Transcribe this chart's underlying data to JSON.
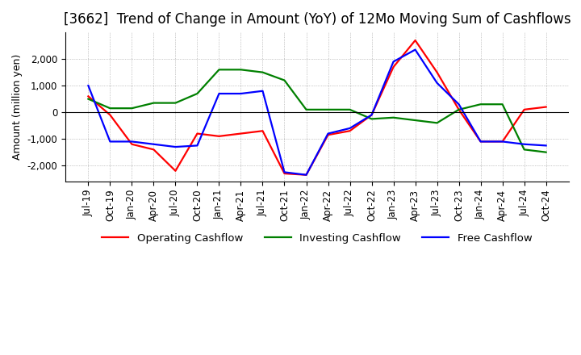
{
  "title": "[3662]  Trend of Change in Amount (YoY) of 12Mo Moving Sum of Cashflows",
  "ylabel": "Amount (million yen)",
  "ylim": [
    -2600,
    3000
  ],
  "yticks": [
    -2000,
    -1000,
    0,
    1000,
    2000
  ],
  "x_labels": [
    "Jul-19",
    "Oct-19",
    "Jan-20",
    "Apr-20",
    "Jul-20",
    "Oct-20",
    "Jan-21",
    "Apr-21",
    "Jul-21",
    "Oct-21",
    "Jan-22",
    "Apr-22",
    "Jul-22",
    "Oct-22",
    "Jan-23",
    "Apr-23",
    "Jul-23",
    "Oct-23",
    "Jan-24",
    "Apr-24",
    "Jul-24",
    "Oct-24"
  ],
  "operating": [
    600,
    -100,
    -1200,
    -1400,
    -2200,
    -800,
    -900,
    -800,
    -700,
    -2300,
    -2350,
    -850,
    -700,
    -100,
    1700,
    2700,
    1500,
    100,
    -1100,
    -1100,
    100,
    200
  ],
  "investing": [
    500,
    150,
    150,
    350,
    350,
    700,
    1600,
    1600,
    1500,
    1200,
    100,
    100,
    100,
    -250,
    -200,
    -300,
    -400,
    100,
    300,
    300,
    -1400,
    -1500
  ],
  "free": [
    1000,
    -1100,
    -1100,
    -1200,
    -1300,
    -1250,
    700,
    700,
    800,
    -2250,
    -2350,
    -800,
    -600,
    -100,
    1900,
    2350,
    1100,
    300,
    -1100,
    -1100,
    -1200,
    -1250
  ],
  "operating_color": "#FF0000",
  "investing_color": "#008000",
  "free_color": "#0000FF",
  "bg_color": "#FFFFFF",
  "grid_color": "#999999",
  "title_fontsize": 12,
  "label_fontsize": 9,
  "tick_fontsize": 8.5,
  "legend_fontsize": 9.5
}
